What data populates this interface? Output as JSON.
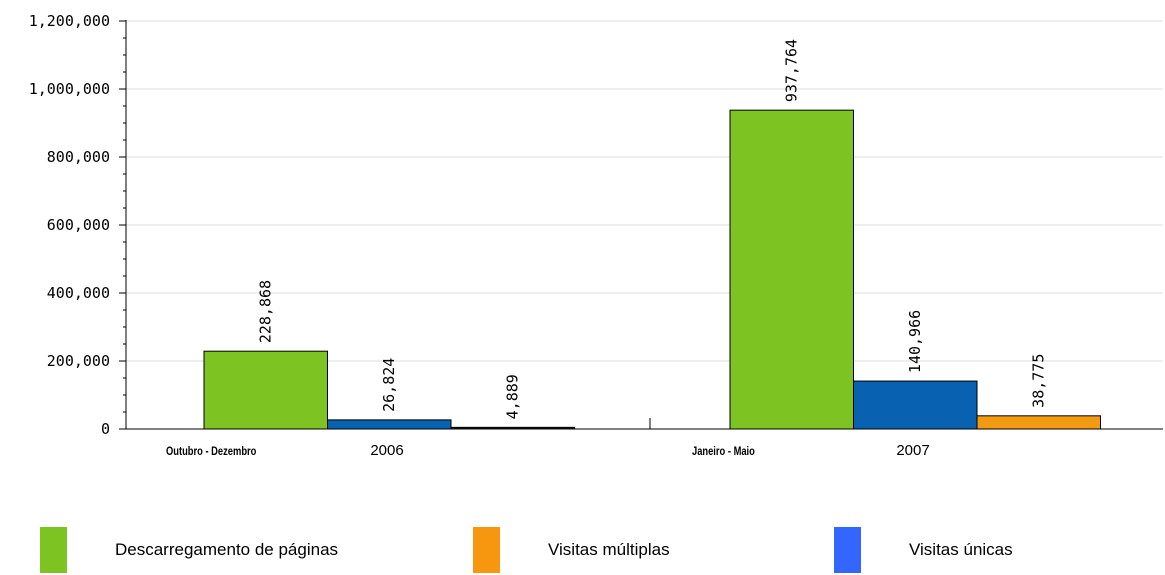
{
  "chart_data": {
    "type": "bar",
    "title": "",
    "xlabel": "",
    "ylabel": "",
    "ylim": [
      0,
      1200000
    ],
    "y_ticks": [
      "0",
      "200,000",
      "400,000",
      "600,000",
      "800,000",
      "1,000,000",
      "1,200,000"
    ],
    "y_tick_values": [
      0,
      200000,
      400000,
      600000,
      800000,
      1000000,
      1200000
    ],
    "grid": true,
    "legend_position": "bottom",
    "groups": [
      {
        "period": "Outubro - Dezembro",
        "year": "2006",
        "bars": [
          {
            "series": "Descarregamento de páginas",
            "value": 228868,
            "label": "228,868",
            "color": "#7dc423"
          },
          {
            "series": "Visitas únicas",
            "value": 26824,
            "label": "26,824",
            "color": "#0861b1"
          },
          {
            "series": "Visitas múltiplas",
            "value": 4889,
            "label": "4,889",
            "color": "#1a1a1a"
          }
        ]
      },
      {
        "period": "Janeiro - Maio",
        "year": "2007",
        "bars": [
          {
            "series": "Descarregamento de páginas",
            "value": 937764,
            "label": "937,764",
            "color": "#7dc423"
          },
          {
            "series": "Visitas únicas",
            "value": 140966,
            "label": "140,966",
            "color": "#0861b1"
          },
          {
            "series": "Visitas múltiplas",
            "value": 38775,
            "label": "38,775",
            "color": "#f29a12"
          }
        ]
      }
    ],
    "legend": [
      {
        "label": "Descarregamento de páginas",
        "color": "#7dc423"
      },
      {
        "label": "Visitas múltiplas",
        "color": "#f7960f"
      },
      {
        "label": "Visitas únicas",
        "color": "#3365ff"
      }
    ]
  }
}
